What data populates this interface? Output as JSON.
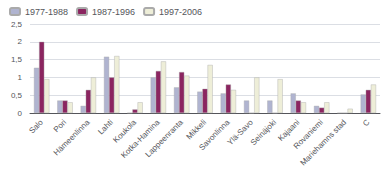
{
  "chart_data": {
    "type": "bar",
    "categories": [
      "Salo",
      "Pori",
      "Hämeenlinna",
      "Lahti",
      "Koukola",
      "Kotka-Hamina",
      "Lappeenranta",
      "Mikkeli",
      "Savonlinna",
      "Ylä-Savo",
      "Seinäjoki",
      "Kajaani",
      "Rovaniemi",
      "Mariehamns stad",
      "C"
    ],
    "series": [
      {
        "name": "1977-1988",
        "color": "#b0b4d0",
        "values": [
          1.27,
          0.35,
          0.2,
          1.58,
          0.0,
          1.0,
          0.72,
          0.6,
          0.55,
          0.35,
          0.35,
          0.55,
          0.2,
          0.0,
          0.52
        ]
      },
      {
        "name": "1987-1996",
        "color": "#8b2560",
        "values": [
          2.0,
          0.35,
          0.65,
          1.0,
          0.1,
          1.18,
          1.15,
          0.68,
          0.8,
          0.0,
          0.0,
          0.35,
          0.15,
          0.0,
          0.65
        ]
      },
      {
        "name": "1997-2006",
        "color": "#eeeed8",
        "values": [
          0.95,
          0.3,
          1.0,
          1.6,
          0.3,
          1.45,
          1.05,
          1.35,
          0.65,
          1.0,
          0.95,
          0.3,
          0.3,
          0.12,
          0.8
        ]
      }
    ],
    "ylim": [
      0,
      2.5
    ],
    "yticks": [
      0,
      {
        "value": 0.5,
        "label": "0,5"
      },
      1,
      {
        "value": 1.5,
        "label": "1,5"
      },
      2,
      {
        "value": 2.5,
        "label": "2,5"
      }
    ],
    "grid": true,
    "legend": "upper left"
  }
}
